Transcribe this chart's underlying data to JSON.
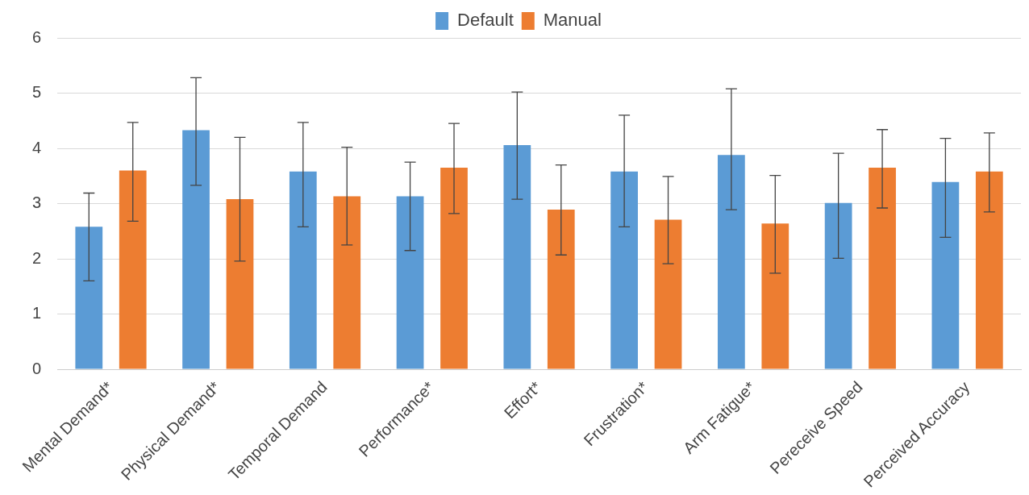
{
  "chart_data": {
    "type": "bar",
    "categories": [
      "Mental Demand*",
      "Physical Demand*",
      "Temporal Demand",
      "Performance*",
      "Effort*",
      "Frustration*",
      "Arm Fatigue*",
      "Pereceive Speed",
      "Perceived Accuracy"
    ],
    "series": [
      {
        "name": "Default",
        "color": "#5b9bd5",
        "values": [
          2.58,
          4.33,
          3.58,
          3.13,
          4.06,
          3.58,
          3.88,
          3.01,
          3.39
        ],
        "errors": [
          [
            1.6,
            3.19
          ],
          [
            3.33,
            5.28
          ],
          [
            2.58,
            4.47
          ],
          [
            2.15,
            3.75
          ],
          [
            3.08,
            5.02
          ],
          [
            2.58,
            4.6
          ],
          [
            2.89,
            5.08
          ],
          [
            2.01,
            3.91
          ],
          [
            2.39,
            4.18
          ]
        ]
      },
      {
        "name": "Manual",
        "color": "#ed7d31",
        "values": [
          3.6,
          3.08,
          3.13,
          3.65,
          2.89,
          2.71,
          2.64,
          3.65,
          3.58
        ],
        "errors": [
          [
            2.68,
            4.47
          ],
          [
            1.96,
            4.2
          ],
          [
            2.25,
            4.02
          ],
          [
            2.82,
            4.45
          ],
          [
            2.07,
            3.7
          ],
          [
            1.91,
            3.49
          ],
          [
            1.74,
            3.51
          ],
          [
            2.92,
            4.34
          ],
          [
            2.85,
            4.28
          ]
        ]
      }
    ],
    "ylim": [
      0,
      6
    ],
    "yticks": [
      0,
      1,
      2,
      3,
      4,
      5,
      6
    ],
    "grid": "y",
    "legend": "top"
  }
}
